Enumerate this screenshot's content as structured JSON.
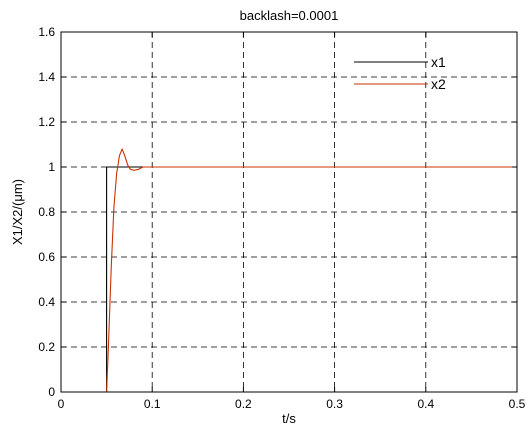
{
  "chart_data": {
    "type": "line",
    "title": "backlash=0.0001",
    "xlabel": "t/s",
    "ylabel": "X1/X2/(μm)",
    "xlim": [
      0,
      0.5
    ],
    "ylim": [
      0,
      1.6
    ],
    "xticks": [
      "0",
      "0.1",
      "0.2",
      "0.3",
      "0.4",
      "0.5"
    ],
    "yticks": [
      "0",
      "0.2",
      "0.4",
      "0.6",
      "0.8",
      "1",
      "1.2",
      "1.4",
      "1.6"
    ],
    "grid": true,
    "legend_position": "top-right",
    "series": [
      {
        "name": "x1",
        "color": "#000000",
        "x": [
          0,
          0.05,
          0.05,
          0.5
        ],
        "y": [
          0,
          0,
          1,
          1
        ]
      },
      {
        "name": "x2",
        "color": "#cc3300",
        "x": [
          0,
          0.05,
          0.052,
          0.055,
          0.058,
          0.061,
          0.064,
          0.067,
          0.07,
          0.073,
          0.076,
          0.08,
          0.085,
          0.09,
          0.1,
          0.12,
          0.5
        ],
        "y": [
          0,
          0,
          0.2,
          0.55,
          0.82,
          0.97,
          1.05,
          1.08,
          1.05,
          1.01,
          0.99,
          0.985,
          0.99,
          1.0,
          1.0,
          1.0,
          1.0
        ]
      }
    ]
  }
}
